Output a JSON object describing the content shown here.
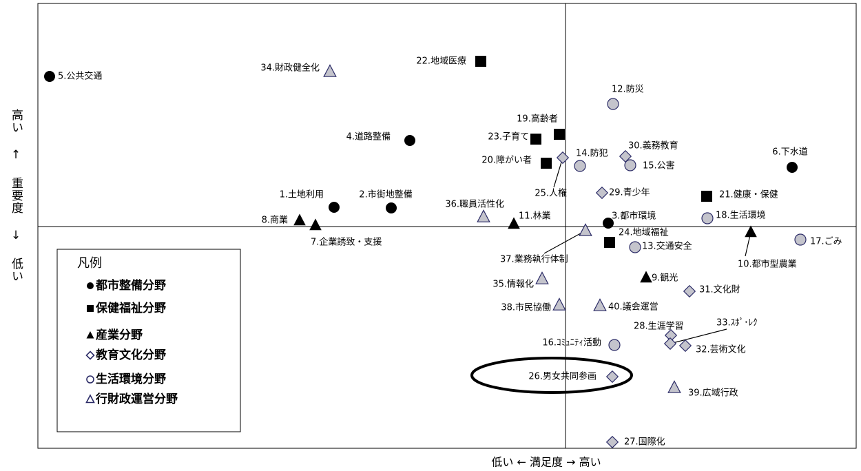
{
  "chart_data": {
    "type": "scatter",
    "x_label": "低い ← 満足度 → 高い",
    "y_label": "高い ↑ 重要度 ↓ 低い",
    "legend_title": "凡例",
    "xlim": [
      -76.6,
      42.2
    ],
    "ylim": [
      -32.2,
      32.4
    ],
    "series": [
      {
        "name": "都市整備分野",
        "marker": "circle",
        "color": "#000000",
        "edgecolor": "#000000",
        "labels": [
          "5.公共交通",
          "4.道路整備",
          "1.土地利用",
          "2.市街地整備",
          "3.都市環境",
          "6.下水道"
        ],
        "x": [
          -74.9,
          -22.6,
          -33.6,
          -25.3,
          6.2,
          32.9
        ],
        "y": [
          21.8,
          12.5,
          2.8,
          2.7,
          0.5,
          8.6
        ]
      },
      {
        "name": "保健福祉分野",
        "marker": "square",
        "color": "#000000",
        "edgecolor": "#000000",
        "labels": [
          "22.地域医療",
          "19.高齢者",
          "23.子育て",
          "20.障がい者",
          "21.健康・保健",
          "24.地域福祉"
        ],
        "x": [
          -12.3,
          -0.9,
          -4.3,
          -2.8,
          20.5,
          6.4
        ],
        "y": [
          24.0,
          13.4,
          12.7,
          9.2,
          4.4,
          -2.3
        ]
      },
      {
        "name": "産業分野",
        "marker": "triangle",
        "color": "#000000",
        "edgecolor": "#000000",
        "labels": [
          "8.商業",
          "7.企業誘致・支援",
          "11.林業",
          "9.観光",
          "10.都市型農業"
        ],
        "x": [
          -38.6,
          -36.3,
          -7.5,
          11.7,
          26.9
        ],
        "y": [
          0.9,
          0.2,
          0.4,
          -7.4,
          -0.8
        ]
      },
      {
        "name": "教育文化分野",
        "marker": "diamond",
        "color": "#c4c4cc",
        "edgecolor": "#2a2a66",
        "labels": [
          "25.人権",
          "30.義務教育",
          "29.青少年",
          "31.文化財",
          "28.生涯学習",
          "33.ｽﾎﾟ･ﾚｸ",
          "32.芸術文化",
          "26.男女共同参画",
          "27.国際化"
        ],
        "x": [
          -0.4,
          8.7,
          5.3,
          18.0,
          15.3,
          15.2,
          17.4,
          6.8,
          6.8
        ],
        "y": [
          10.0,
          10.2,
          4.9,
          -9.4,
          -15.8,
          -17.0,
          -17.3,
          -21.8,
          -31.3
        ]
      },
      {
        "name": "生活環境分野",
        "marker": "circle",
        "color": "#c4c4cc",
        "edgecolor": "#2a2a66",
        "labels": [
          "12.防災",
          "14.防犯",
          "15.公害",
          "18.生活環境",
          "13.交通安全",
          "17.ごみ",
          "16.ｺﾐｭﾆﾃｨ活動"
        ],
        "x": [
          6.9,
          2.1,
          9.4,
          20.6,
          10.1,
          34.1,
          7.1
        ],
        "y": [
          17.8,
          8.8,
          8.9,
          1.2,
          -3.0,
          -1.9,
          -17.2
        ]
      },
      {
        "name": "行財政運営分野",
        "marker": "triangle",
        "color": "#c4c4cc",
        "edgecolor": "#2a2a66",
        "labels": [
          "34.財政健全化",
          "36.職員活性化",
          "37.業務執行体制",
          "35.情報化",
          "38.市民協働",
          "40.議会運営",
          "39.広域行政"
        ],
        "x": [
          -34.2,
          -11.9,
          2.9,
          -3.4,
          -0.9,
          5.0,
          15.8
        ],
        "y": [
          22.5,
          1.4,
          -0.6,
          -7.6,
          -11.4,
          -11.5,
          -23.4
        ]
      }
    ]
  }
}
